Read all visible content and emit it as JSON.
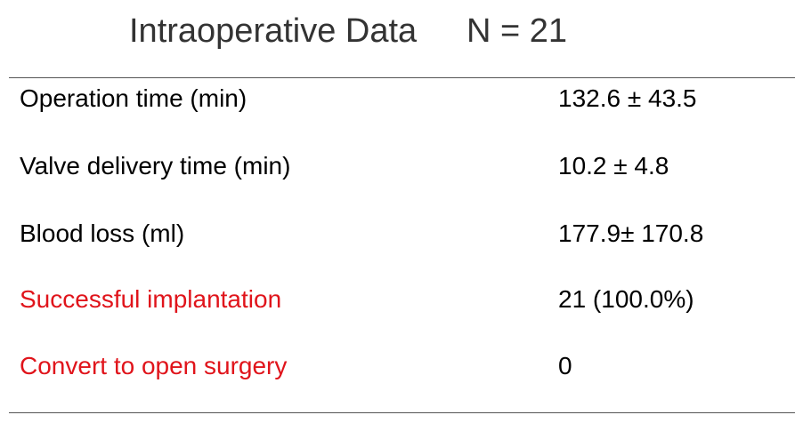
{
  "header": {
    "title": "Intraoperative Data",
    "n": "N = 21"
  },
  "table": {
    "rows": [
      {
        "label": "Operation time (min)",
        "value": "132.6 ± 43.5",
        "color": "#000000"
      },
      {
        "label": "Valve delivery time (min)",
        "value": "10.2 ± 4.8",
        "color": "#000000"
      },
      {
        "label": "Blood loss (ml)",
        "value": "177.9± 170.8",
        "color": "#000000"
      },
      {
        "label": "Successful implantation",
        "value": "21 (100.0%)",
        "color": "#e0141b",
        "value_color": "#000000"
      },
      {
        "label": "Convert to open surgery",
        "value": "0",
        "color": "#e0141b",
        "value_color": "#000000"
      }
    ]
  }
}
